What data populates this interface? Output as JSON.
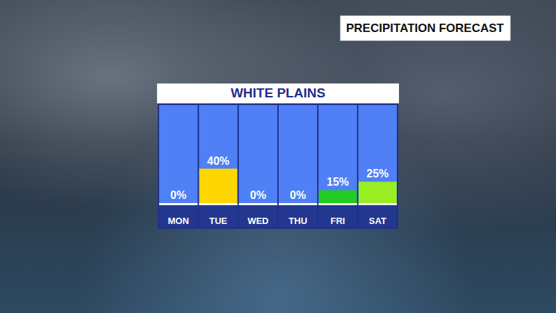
{
  "chart_data": {
    "type": "bar",
    "title": "WHITE PLAINS",
    "subtitle": "PRECIPITATION FORECAST",
    "categories": [
      "MON",
      "TUE",
      "WED",
      "THU",
      "FRI",
      "SAT"
    ],
    "values": [
      0,
      40,
      0,
      0,
      15,
      25
    ],
    "value_labels": [
      "0%",
      "40%",
      "0%",
      "0%",
      "15%",
      "25%"
    ],
    "colors": [
      "#ffffff",
      "#ffd700",
      "#ffffff",
      "#ffffff",
      "#22cc22",
      "#99ee22"
    ],
    "ylim": [
      0,
      115
    ],
    "grid": false,
    "data_labels": true,
    "tick_labels": "x"
  }
}
